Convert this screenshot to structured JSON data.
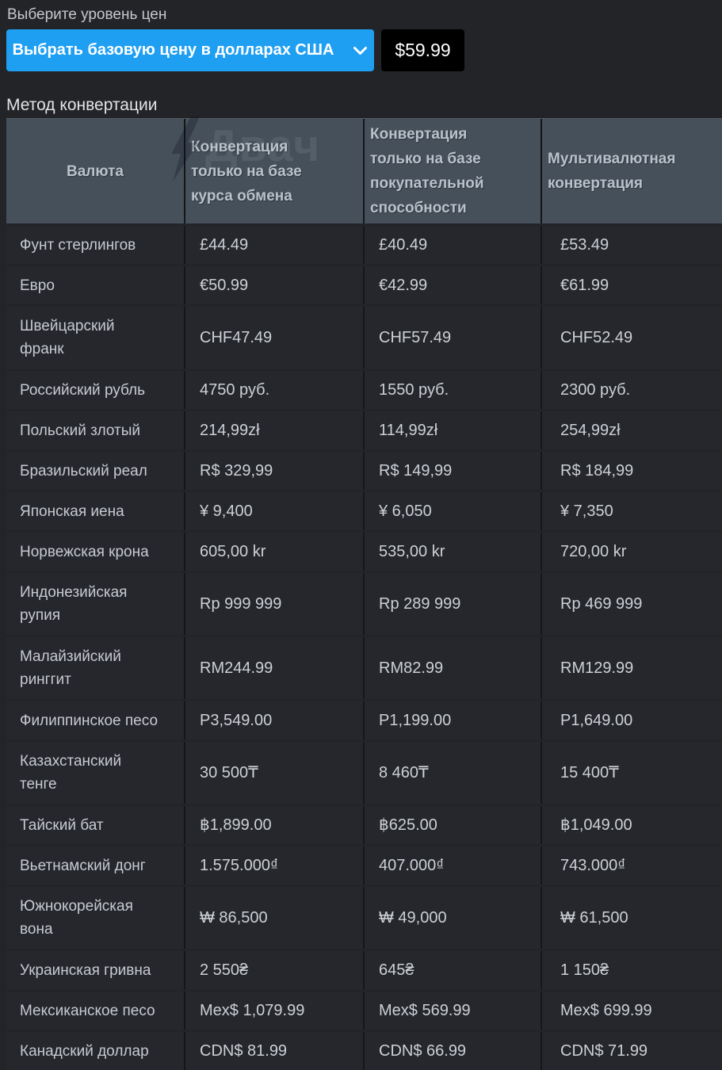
{
  "price_level": {
    "label": "Выберите уровень цен",
    "select_button_label": "Выбрать базовую цену в долларах США",
    "base_price": "$59.99"
  },
  "conversion_method_label": "Метод конвертации",
  "watermark": "Двач",
  "colors": {
    "accent_blue": "#1f9ff2",
    "price_box_bg": "#000000",
    "page_bg": "#232428",
    "table_header_bg": "#46505b",
    "row_bg": "#26272c",
    "divider": "#14161a"
  },
  "table": {
    "columns": [
      {
        "lines": [
          "Валюта"
        ]
      },
      {
        "lines": [
          "Конвертация",
          "только на базе",
          "курса обмена"
        ]
      },
      {
        "lines": [
          "Конвертация",
          "только на базе",
          "покупательной",
          "способности"
        ]
      },
      {
        "lines": [
          "Мультивалютная",
          "конвертация"
        ]
      }
    ],
    "rows": [
      {
        "name_lines": [
          "Фунт стерлингов"
        ],
        "values": [
          "£44.49",
          "£40.49",
          "£53.49"
        ]
      },
      {
        "name_lines": [
          "Евро"
        ],
        "values": [
          "€50.99",
          "€42.99",
          "€61.99"
        ]
      },
      {
        "name_lines": [
          "Швейцарский",
          "франк"
        ],
        "values": [
          "CHF47.49",
          "CHF57.49",
          "CHF52.49"
        ]
      },
      {
        "name_lines": [
          "Российский рубль"
        ],
        "values": [
          "4750 руб.",
          "1550 руб.",
          "2300 руб."
        ]
      },
      {
        "name_lines": [
          "Польский злотый"
        ],
        "values": [
          "214,99zł",
          "114,99zł",
          "254,99zł"
        ]
      },
      {
        "name_lines": [
          "Бразильский реал"
        ],
        "values": [
          "R$ 329,99",
          "R$ 149,99",
          "R$ 184,99"
        ]
      },
      {
        "name_lines": [
          "Японская иена"
        ],
        "values": [
          "¥ 9,400",
          "¥ 6,050",
          "¥ 7,350"
        ]
      },
      {
        "name_lines": [
          "Норвежская крона"
        ],
        "values": [
          "605,00 kr",
          "535,00 kr",
          "720,00 kr"
        ]
      },
      {
        "name_lines": [
          "Индонезийская",
          "рупия"
        ],
        "values": [
          "Rp 999 999",
          "Rp 289 999",
          "Rp 469 999"
        ]
      },
      {
        "name_lines": [
          "Малайзийский",
          "ринггит"
        ],
        "values": [
          "RM244.99",
          "RM82.99",
          "RM129.99"
        ]
      },
      {
        "name_lines": [
          "Филиппинское песо"
        ],
        "values": [
          "P3,549.00",
          "P1,199.00",
          "P1,649.00"
        ]
      },
      {
        "name_lines": [
          "Казахстанский",
          "тенге"
        ],
        "values": [
          "30 500₸",
          "8 460₸",
          "15 400₸"
        ]
      },
      {
        "name_lines": [
          "Тайский бат"
        ],
        "values": [
          "฿1,899.00",
          "฿625.00",
          "฿1,049.00"
        ]
      },
      {
        "name_lines": [
          "Вьетнамский донг"
        ],
        "values": [
          "1.575.000₫",
          "407.000₫",
          "743.000₫"
        ]
      },
      {
        "name_lines": [
          "Южнокорейская",
          "вона"
        ],
        "values": [
          "₩ 86,500",
          "₩ 49,000",
          "₩ 61,500"
        ]
      },
      {
        "name_lines": [
          "Украинская гривна"
        ],
        "values": [
          "2 550₴",
          "645₴",
          "1 150₴"
        ]
      },
      {
        "name_lines": [
          "Мексиканское песо"
        ],
        "values": [
          "Mex$ 1,079.99",
          "Mex$ 569.99",
          "Mex$ 699.99"
        ]
      },
      {
        "name_lines": [
          "Канадский доллар"
        ],
        "values": [
          "CDN$ 81.99",
          "CDN$ 66.99",
          "CDN$ 71.99"
        ]
      }
    ]
  }
}
